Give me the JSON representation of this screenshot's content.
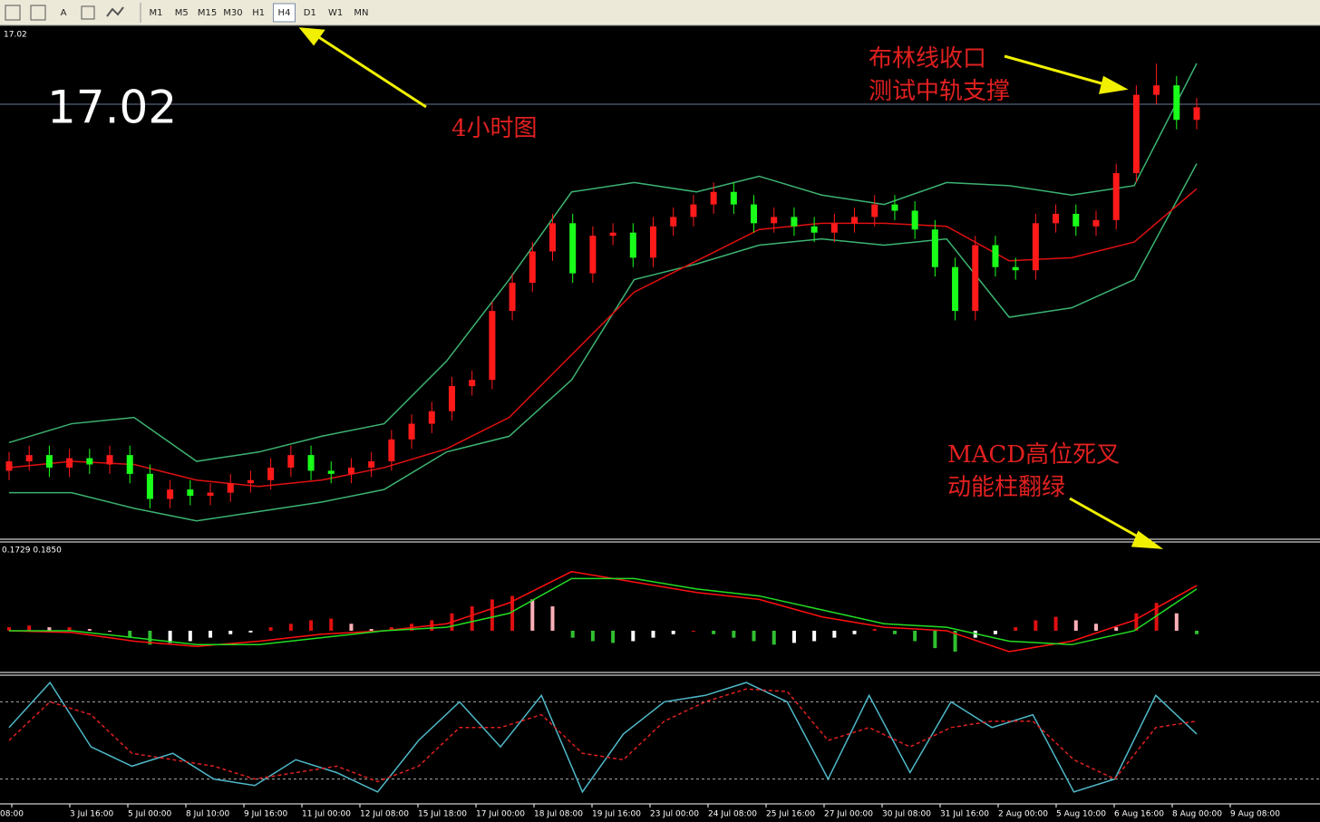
{
  "toolbar": {
    "timeframes": [
      "M1",
      "M5",
      "M15",
      "M30",
      "H1",
      "H4",
      "D1",
      "W1",
      "MN"
    ],
    "active": "H4"
  },
  "annotations": {
    "bollinger_1": "布林线收口",
    "bollinger_2": "测试中轨支撑",
    "timeframe": "4小时图",
    "macd_1": "MACD高位死叉",
    "macd_2": "动能柱翻绿"
  },
  "chart_data": [
    {
      "type": "candlestick",
      "price": 17.02,
      "ylim": [
        15.64,
        17.26
      ],
      "open": [
        15.85,
        15.88,
        15.9,
        15.86,
        15.89,
        15.87,
        15.9,
        15.84,
        15.76,
        15.79,
        15.77,
        15.78,
        15.81,
        15.82,
        15.86,
        15.9,
        15.85,
        15.84,
        15.86,
        15.88,
        15.95,
        16.0,
        16.04,
        16.12,
        16.14,
        16.36,
        16.45,
        16.55,
        16.64,
        16.48,
        16.6,
        16.61,
        16.53,
        16.63,
        16.66,
        16.7,
        16.74,
        16.7,
        16.64,
        16.66,
        16.63,
        16.61,
        16.64,
        16.66,
        16.7,
        16.68,
        16.62,
        16.5,
        16.36,
        16.57,
        16.5,
        16.49,
        16.64,
        16.67,
        16.63,
        16.65,
        16.8,
        17.05,
        17.08,
        16.97
      ],
      "high": [
        15.91,
        15.93,
        15.93,
        15.92,
        15.92,
        15.93,
        15.93,
        15.87,
        15.82,
        15.82,
        15.81,
        15.84,
        15.85,
        15.89,
        15.93,
        15.93,
        15.88,
        15.89,
        15.91,
        15.98,
        16.03,
        16.07,
        16.15,
        16.17,
        16.39,
        16.48,
        16.58,
        16.67,
        16.67,
        16.63,
        16.64,
        16.64,
        16.66,
        16.69,
        16.73,
        16.77,
        16.77,
        16.73,
        16.69,
        16.69,
        16.66,
        16.67,
        16.69,
        16.73,
        16.73,
        16.71,
        16.65,
        16.53,
        16.6,
        16.6,
        16.53,
        16.67,
        16.7,
        16.7,
        16.68,
        16.83,
        17.08,
        17.15,
        17.11,
        17.04
      ],
      "low": [
        15.82,
        15.85,
        15.83,
        15.83,
        15.84,
        15.84,
        15.81,
        15.73,
        15.73,
        15.74,
        15.74,
        15.75,
        15.78,
        15.79,
        15.83,
        15.82,
        15.81,
        15.81,
        15.83,
        15.85,
        15.92,
        15.97,
        16.01,
        16.09,
        16.11,
        16.33,
        16.42,
        16.52,
        16.45,
        16.45,
        16.57,
        16.5,
        16.5,
        16.6,
        16.63,
        16.67,
        16.67,
        16.61,
        16.61,
        16.6,
        16.58,
        16.58,
        16.61,
        16.63,
        16.65,
        16.59,
        16.47,
        16.33,
        16.33,
        16.47,
        16.46,
        16.46,
        16.61,
        16.6,
        16.6,
        16.62,
        16.77,
        17.02,
        16.94,
        16.94
      ],
      "close": [
        15.88,
        15.9,
        15.86,
        15.89,
        15.87,
        15.9,
        15.84,
        15.76,
        15.79,
        15.77,
        15.78,
        15.81,
        15.82,
        15.86,
        15.9,
        15.85,
        15.84,
        15.86,
        15.88,
        15.95,
        16.0,
        16.04,
        16.12,
        16.14,
        16.36,
        16.45,
        16.55,
        16.64,
        16.48,
        16.6,
        16.61,
        16.53,
        16.63,
        16.66,
        16.7,
        16.74,
        16.7,
        16.64,
        16.66,
        16.63,
        16.61,
        16.64,
        16.66,
        16.7,
        16.68,
        16.62,
        16.5,
        16.36,
        16.57,
        16.5,
        16.49,
        16.64,
        16.67,
        16.63,
        16.65,
        16.8,
        17.05,
        17.08,
        16.97,
        17.01
      ],
      "series": [
        {
          "name": "upper",
          "color": "#3cb371",
          "values": [
            15.94,
            16.0,
            16.02,
            15.88,
            15.91,
            15.96,
            16.0,
            16.2,
            16.46,
            16.74,
            16.77,
            16.74,
            16.79,
            16.73,
            16.7,
            16.77,
            16.76,
            16.73,
            16.76,
            17.15
          ]
        },
        {
          "name": "lower",
          "color": "#3cb371",
          "values": [
            15.78,
            15.78,
            15.73,
            15.69,
            15.72,
            15.75,
            15.79,
            15.91,
            15.96,
            16.14,
            16.46,
            16.51,
            16.57,
            16.59,
            16.57,
            16.59,
            16.34,
            16.37,
            16.46,
            16.83
          ]
        },
        {
          "name": "ma",
          "color": "#e01010",
          "values": [
            15.86,
            15.88,
            15.87,
            15.82,
            15.8,
            15.82,
            15.86,
            15.92,
            16.02,
            16.22,
            16.42,
            16.52,
            16.62,
            16.64,
            16.64,
            16.63,
            16.52,
            16.53,
            16.58,
            16.75
          ]
        }
      ]
    },
    {
      "type": "macd",
      "label": "0.1729 0.1850",
      "ylim": [
        -0.12,
        0.25
      ],
      "histogram": [
        0.01,
        0.015,
        0.01,
        0.01,
        0.005,
        0.0,
        -0.02,
        -0.04,
        -0.035,
        -0.03,
        -0.02,
        -0.01,
        -0.005,
        0.01,
        0.02,
        0.03,
        0.035,
        0.02,
        0.005,
        0.01,
        0.02,
        0.03,
        0.05,
        0.07,
        0.09,
        0.1,
        0.09,
        0.07,
        -0.02,
        -0.03,
        -0.035,
        -0.03,
        -0.02,
        -0.01,
        0.0,
        -0.01,
        -0.02,
        -0.03,
        -0.04,
        -0.035,
        -0.03,
        -0.02,
        -0.01,
        0.005,
        -0.01,
        -0.03,
        -0.05,
        -0.06,
        -0.02,
        -0.01,
        0.01,
        0.03,
        0.04,
        0.03,
        0.02,
        0.01,
        0.05,
        0.08,
        0.05,
        -0.01
      ],
      "series": [
        {
          "name": "macd",
          "color": "#ff1010",
          "values": [
            0.0,
            -0.005,
            -0.03,
            -0.045,
            -0.03,
            -0.01,
            0.0,
            0.02,
            0.08,
            0.17,
            0.14,
            0.11,
            0.09,
            0.04,
            0.01,
            0.0,
            -0.06,
            -0.03,
            0.03,
            0.13
          ]
        },
        {
          "name": "signal",
          "color": "#22dd22",
          "values": [
            0.0,
            0.0,
            -0.02,
            -0.04,
            -0.04,
            -0.02,
            0.0,
            0.01,
            0.05,
            0.15,
            0.15,
            0.12,
            0.1,
            0.06,
            0.02,
            0.01,
            -0.03,
            -0.04,
            0.0,
            0.12
          ]
        }
      ]
    },
    {
      "type": "stochastic",
      "ylim": [
        0,
        100
      ],
      "levels": [
        20,
        80
      ],
      "series": [
        {
          "name": "main",
          "color": "#4fb8c8",
          "values": [
            60,
            95,
            45,
            30,
            40,
            20,
            15,
            35,
            25,
            10,
            50,
            80,
            45,
            85,
            10,
            55,
            80,
            85,
            95,
            80,
            20,
            85,
            25,
            80,
            60,
            70,
            10,
            20,
            85,
            55
          ]
        },
        {
          "name": "signal",
          "color": "#e02020",
          "values": [
            50,
            80,
            70,
            40,
            35,
            30,
            20,
            25,
            30,
            18,
            30,
            60,
            60,
            70,
            40,
            35,
            65,
            80,
            90,
            88,
            50,
            60,
            45,
            60,
            65,
            65,
            35,
            20,
            60,
            65
          ]
        }
      ]
    }
  ],
  "x_labels": [
    "08:00",
    "3 Jul 16:00",
    "5 Jul 00:00",
    "8 Jul 10:00",
    "9 Jul 16:00",
    "11 Jul 00:00",
    "12 Jul 08:00",
    "15 Jul 18:00",
    "17 Jul 00:00",
    "18 Jul 08:00",
    "19 Jul 16:00",
    "23 Jul 00:00",
    "24 Jul 08:00",
    "25 Jul 16:00",
    "27 Jul 00:00",
    "30 Jul 08:00",
    "31 Jul 16:00",
    "2 Aug 00:00",
    "5 Aug 10:00",
    "6 Aug 16:00",
    "8 Aug 00:00",
    "9 Aug 08:00"
  ]
}
